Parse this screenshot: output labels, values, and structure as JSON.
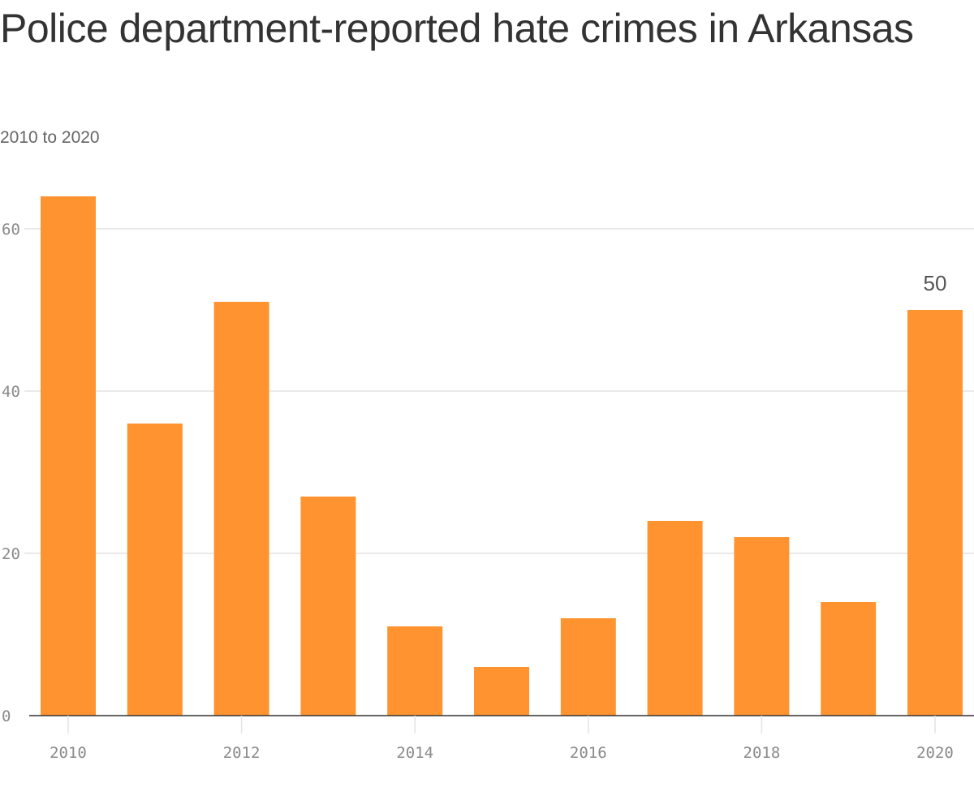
{
  "title": "Police department-reported hate crimes in Arkansas",
  "subtitle": "2010 to 2020",
  "colors": {
    "bar": "#FF9330",
    "grid": "#e3e3e3",
    "axis": "#333333",
    "tick_text": "#8a8a8a",
    "title_text": "#333333",
    "subtitle_text": "#666666"
  },
  "chart_data": {
    "type": "bar",
    "title": "Police department-reported hate crimes in Arkansas",
    "subtitle": "2010 to 2020",
    "categories": [
      "2010",
      "2011",
      "2012",
      "2013",
      "2014",
      "2015",
      "2016",
      "2017",
      "2018",
      "2019",
      "2020"
    ],
    "values": [
      64,
      36,
      51,
      27,
      11,
      6,
      12,
      24,
      22,
      14,
      50
    ],
    "xlabel": "",
    "ylabel": "",
    "ylim": [
      0,
      60
    ],
    "yticks": [
      "0",
      "20",
      "40",
      "60"
    ],
    "xticks": [
      "2010",
      "2012",
      "2014",
      "2016",
      "2018",
      "2020"
    ],
    "data_labels": [
      {
        "category": "2020",
        "text": "50"
      }
    ],
    "grid": true,
    "legend": "none"
  }
}
